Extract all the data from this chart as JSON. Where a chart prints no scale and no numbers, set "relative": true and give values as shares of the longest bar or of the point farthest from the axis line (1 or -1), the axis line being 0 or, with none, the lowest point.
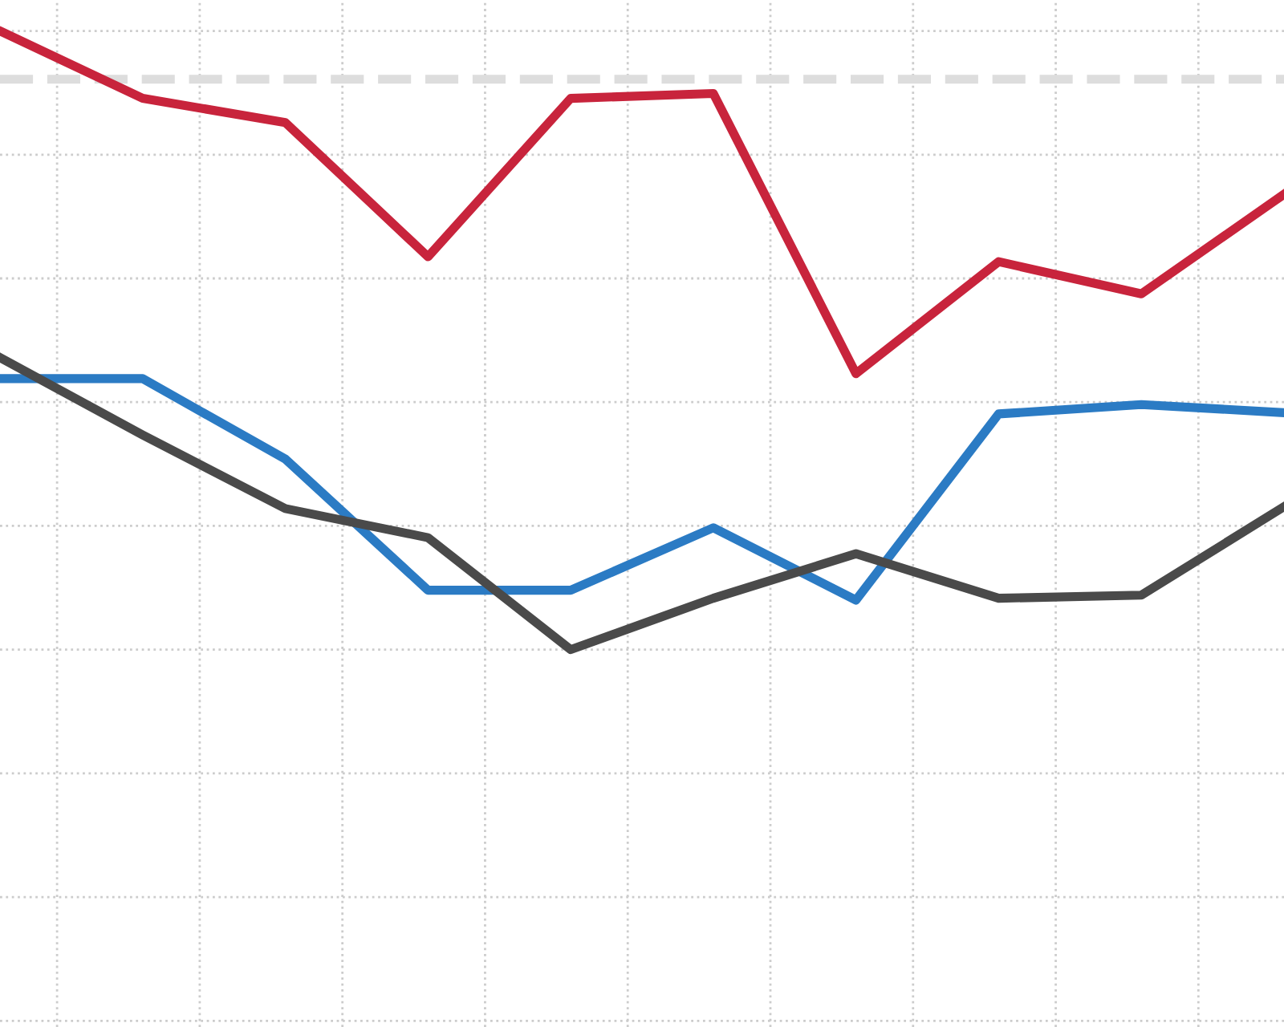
{
  "chart_data": {
    "type": "line",
    "relative": true,
    "categories": [
      null,
      null,
      null,
      null,
      null,
      null,
      null,
      null,
      null,
      null
    ],
    "series": [
      {
        "color": "#c8243c",
        "values": [
          1,
          0.891,
          0.852,
          0.635,
          0.891,
          0.899,
          0.446,
          0.627,
          0.575,
          0.736
        ]
      },
      {
        "color": "#2b7bc4",
        "values": [
          0.438,
          0.438,
          0.308,
          0.096,
          0.096,
          0.197,
          0.08,
          0.381,
          0.396,
          0.383
        ]
      },
      {
        "color": "#4a4a4a",
        "values": [
          0.472,
          0.347,
          0.228,
          0.181,
          0,
          0.083,
          0.155,
          0.083,
          0.088,
          0.231
        ]
      }
    ],
    "ref_lines": [
      {
        "axis": "y",
        "value": 0.922,
        "color": "#dddddd",
        "line_style": "dashed"
      }
    ],
    "grid": true,
    "legend": false,
    "tick_labels": false,
    "marker": "none",
    "line_style": "solid"
  }
}
